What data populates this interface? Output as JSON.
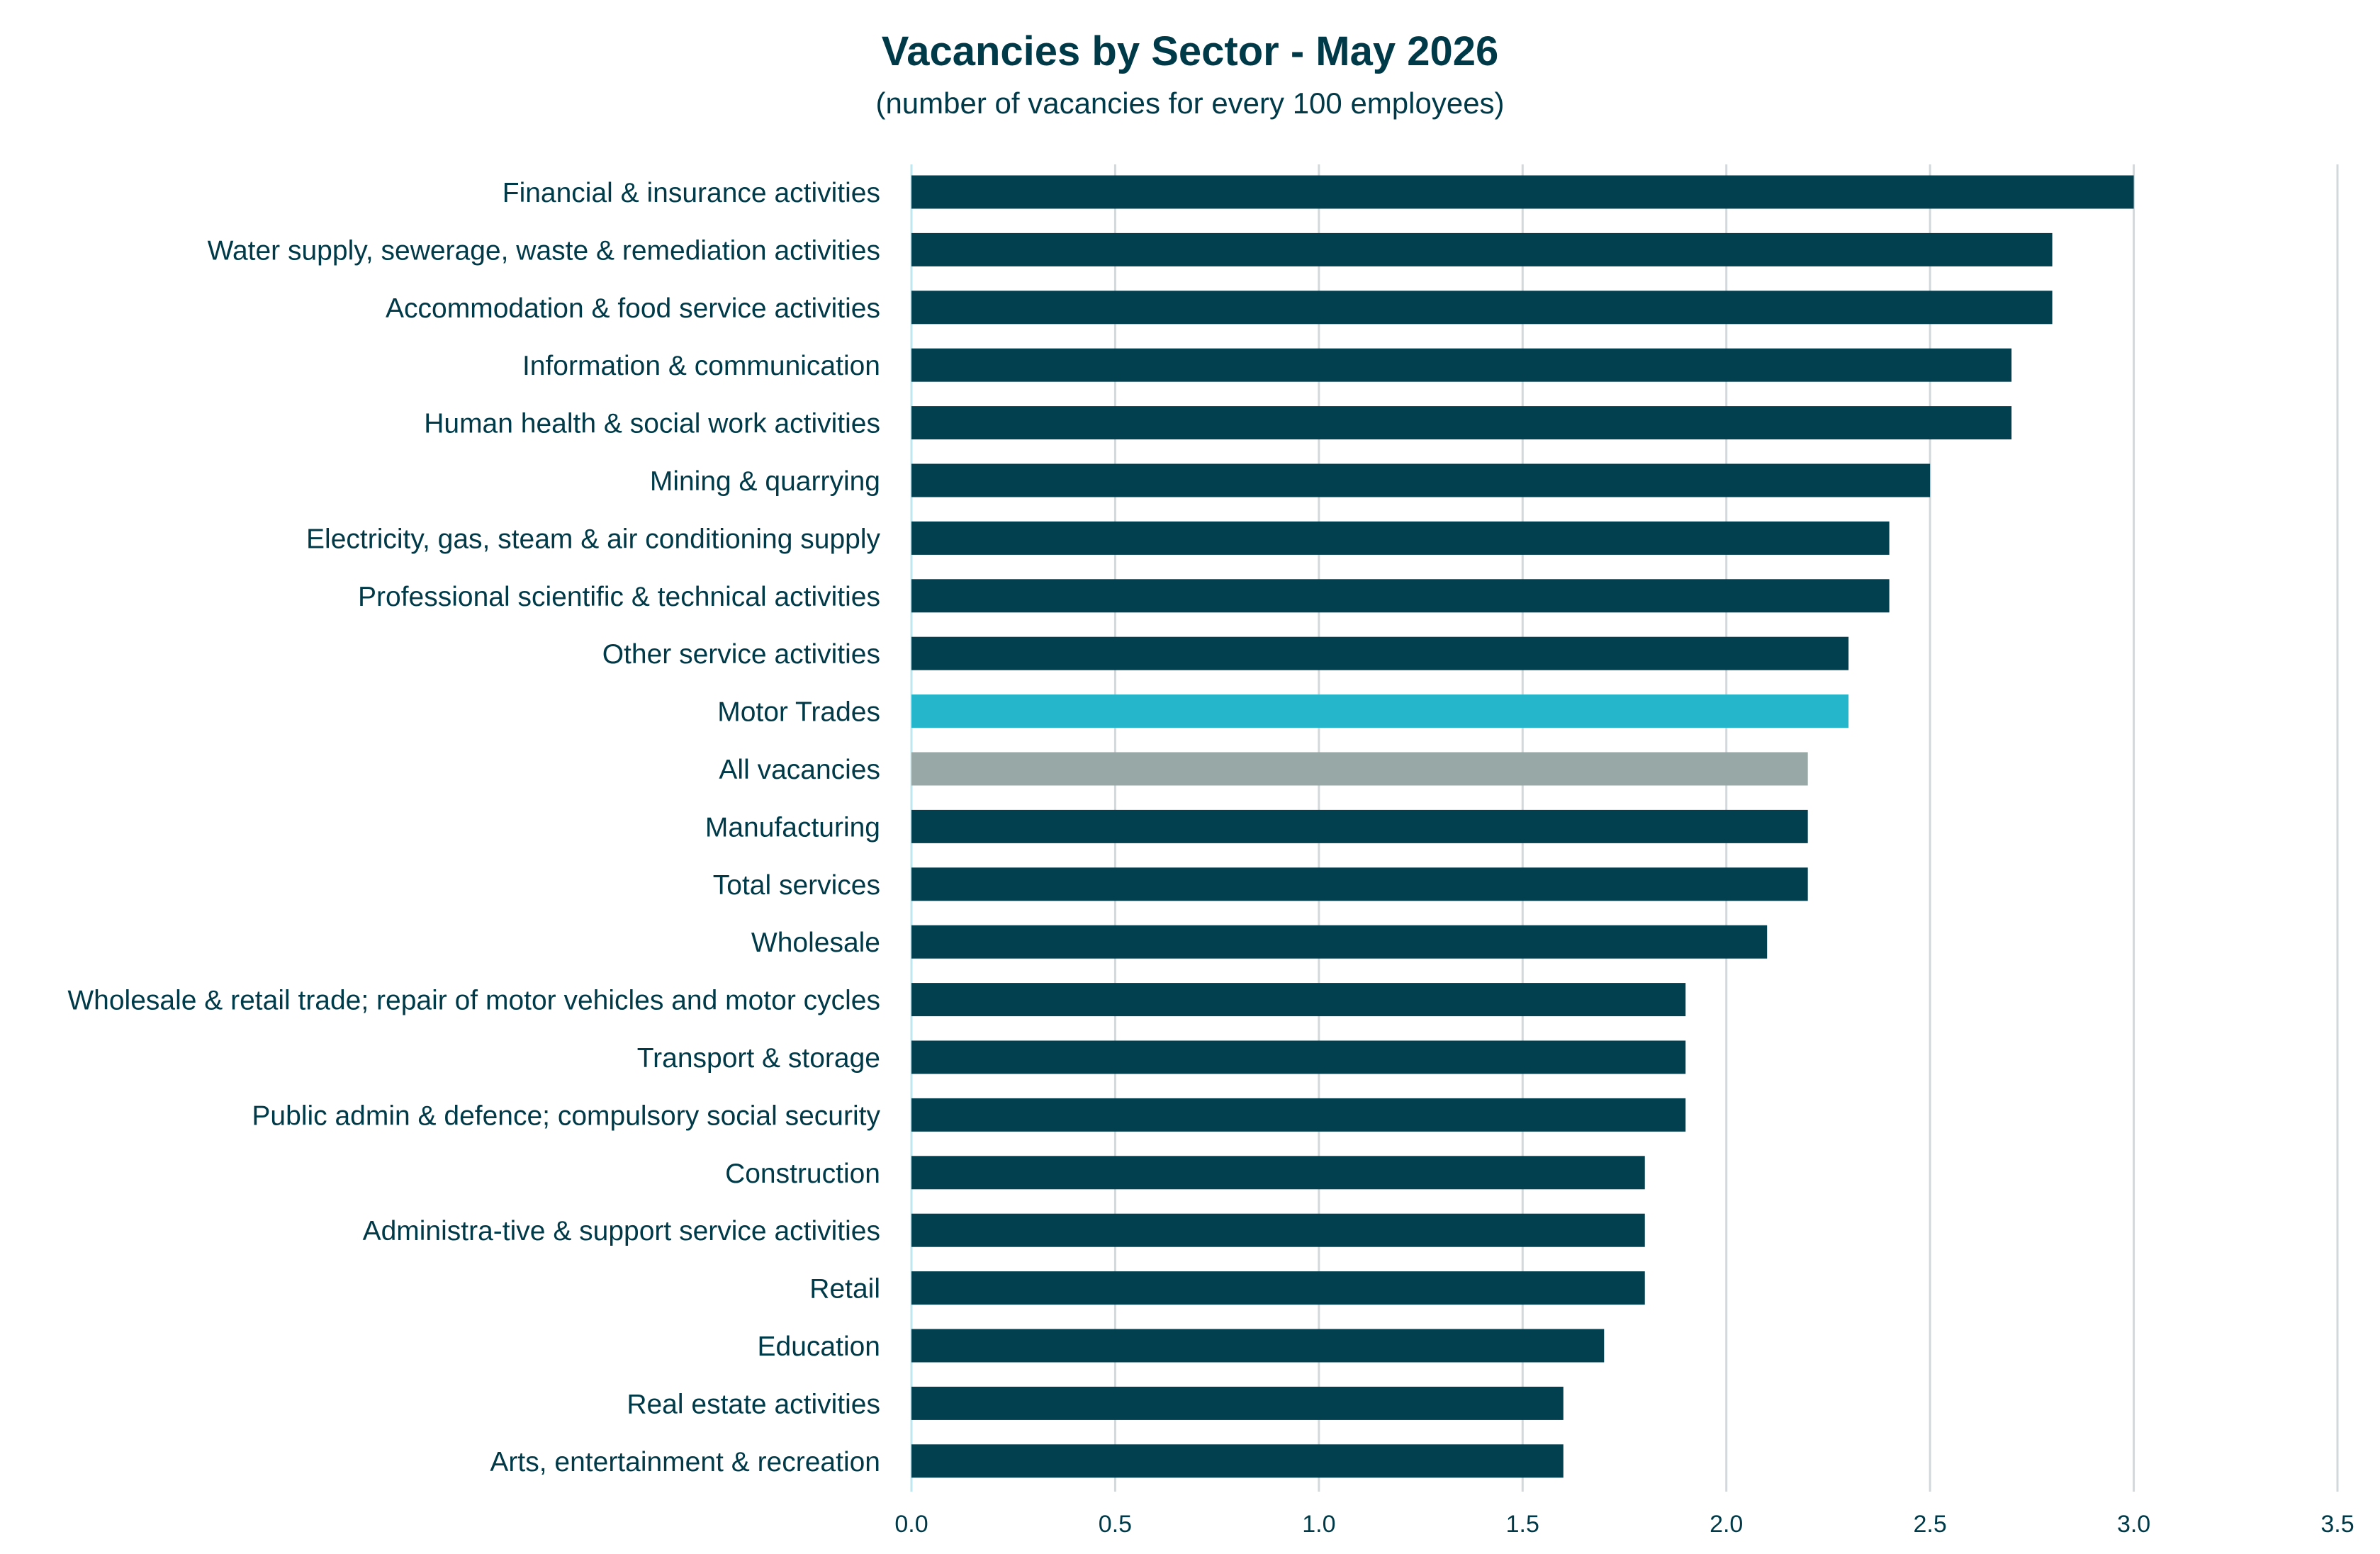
{
  "chart_data": {
    "type": "bar",
    "orientation": "horizontal",
    "title": "Vacancies by Sector - May 2026",
    "subtitle": "(number of vacancies for every 100 employees)",
    "xlabel": "",
    "ylabel": "",
    "xlim": [
      0,
      3.5
    ],
    "xticks": [
      "0.0",
      "0.5",
      "1.0",
      "1.5",
      "2.0",
      "2.5",
      "3.0",
      "3.5"
    ],
    "grid": true,
    "legend": "none",
    "colors": {
      "default": "#023f4f",
      "highlight": "#26b6cb",
      "average": "#97a8a6",
      "text": "#003a48",
      "gridline": "#d3d8da",
      "axis": "#bfe7ef"
    },
    "categories": [
      "Financial & insurance activities",
      "Water supply, sewerage, waste & remediation activities",
      "Accommodation & food service activities",
      "Information & communication",
      "Human health & social work activities",
      "Mining & quarrying",
      "Electricity, gas, steam & air conditioning supply",
      "Professional scientific & technical activities",
      "Other service activities",
      "Motor Trades",
      "All vacancies",
      "Manufacturing",
      "Total services ",
      "Wholesale",
      "Wholesale & retail trade; repair of motor vehicles and motor cycles",
      "Transport & storage",
      "Public admin & defence; compulsory social security",
      "Construction",
      "Administra-tive & support service activities",
      "Retail",
      "Education",
      "Real estate activities",
      "Arts, entertainment & recreation"
    ],
    "values": [
      3.0,
      2.8,
      2.8,
      2.7,
      2.7,
      2.5,
      2.4,
      2.4,
      2.3,
      2.3,
      2.2,
      2.2,
      2.2,
      2.1,
      1.9,
      1.9,
      1.9,
      1.8,
      1.8,
      1.8,
      1.7,
      1.6,
      1.6
    ],
    "highlight": {
      "Motor Trades": "highlight",
      "All vacancies": "average"
    }
  }
}
